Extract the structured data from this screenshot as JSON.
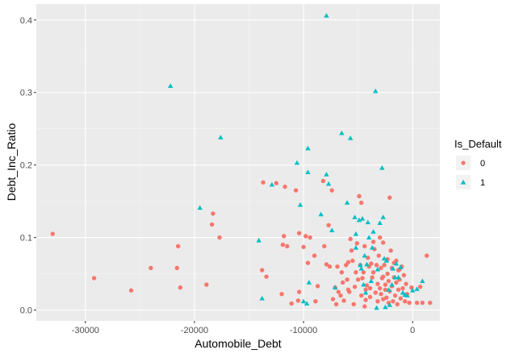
{
  "chart_data": {
    "type": "scatter",
    "xlabel": "Automobile_Debt",
    "ylabel": "Debt_Inc_Ratio",
    "xlim": [
      -34500,
      2500
    ],
    "ylim": [
      -0.015,
      0.422
    ],
    "xticks": [
      -30000,
      -20000,
      -10000,
      0
    ],
    "yticks": [
      0.0,
      0.1,
      0.2,
      0.3,
      0.4
    ],
    "xtick_labels": [
      "-30000",
      "-20000",
      "-10000",
      "0"
    ],
    "ytick_labels": [
      "0.0",
      "0.1",
      "0.2",
      "0.3",
      "0.4"
    ],
    "grid": true,
    "legend": {
      "title": "Is_Default",
      "placement": "right",
      "entries": [
        "0",
        "1"
      ]
    },
    "colors": {
      "0": "#F8766D",
      "1": "#00BFC4",
      "panel": "#EBEBEB",
      "grid_major": "#FFFFFF",
      "grid_minor": "#F5F5F5"
    },
    "series": [
      {
        "name": "0",
        "marker": "circle",
        "points": [
          [
            -33000,
            0.105
          ],
          [
            -29200,
            0.044
          ],
          [
            -25800,
            0.027
          ],
          [
            -24000,
            0.058
          ],
          [
            -21500,
            0.088
          ],
          [
            -21600,
            0.058
          ],
          [
            -21300,
            0.031
          ],
          [
            -18900,
            0.035
          ],
          [
            -18300,
            0.133
          ],
          [
            -18400,
            0.118
          ],
          [
            -17700,
            0.1
          ],
          [
            -13700,
            0.176
          ],
          [
            -13800,
            0.055
          ],
          [
            -13400,
            0.046
          ],
          [
            -12500,
            0.175
          ],
          [
            -12000,
            0.022
          ],
          [
            -11900,
            0.09
          ],
          [
            -11800,
            0.102
          ],
          [
            -11500,
            0.088
          ],
          [
            -11700,
            0.17
          ],
          [
            -11100,
            0.009
          ],
          [
            -10700,
            0.165
          ],
          [
            -10500,
            0.013
          ],
          [
            -10400,
            0.025
          ],
          [
            -10400,
            0.106
          ],
          [
            -10000,
            0.087
          ],
          [
            -9800,
            0.102
          ],
          [
            -9600,
            0.065
          ],
          [
            -9400,
            0.1
          ],
          [
            -9000,
            0.075
          ],
          [
            -8900,
            0.012
          ],
          [
            -8700,
            0.033
          ],
          [
            -8200,
            0.178
          ],
          [
            -8100,
            0.088
          ],
          [
            -7900,
            0.063
          ],
          [
            -7700,
            0.117
          ],
          [
            -7600,
            0.06
          ],
          [
            -7400,
            0.165
          ],
          [
            -7300,
            0.015
          ],
          [
            -7100,
            0.031
          ],
          [
            -7000,
            0.008
          ],
          [
            -6900,
            0.06
          ],
          [
            -6800,
            0.025
          ],
          [
            -6600,
            0.02
          ],
          [
            -6400,
            0.038
          ],
          [
            -6300,
            0.013
          ],
          [
            -6100,
            0.062
          ],
          [
            -6000,
            0.042
          ],
          [
            -5900,
            0.028
          ],
          [
            -5800,
            0.025
          ],
          [
            -5700,
            0.098
          ],
          [
            -5600,
            0.082
          ],
          [
            -5500,
            0.068
          ],
          [
            -5400,
            0.008
          ],
          [
            -5300,
            0.032
          ],
          [
            -5200,
            0.052
          ],
          [
            -5100,
            0.092
          ],
          [
            -5000,
            0.042
          ],
          [
            -4900,
            0.157
          ],
          [
            -4800,
            0.062
          ],
          [
            -4700,
            0.148
          ],
          [
            -4700,
            0.02
          ],
          [
            -4600,
            0.044
          ],
          [
            -4500,
            0.052
          ],
          [
            -4400,
            0.088
          ],
          [
            -4300,
            0.028
          ],
          [
            -4200,
            0.034
          ],
          [
            -4100,
            0.072
          ],
          [
            -4000,
            0.06
          ],
          [
            -3900,
            0.018
          ],
          [
            -3900,
            0.03
          ],
          [
            -3800,
            0.064
          ],
          [
            -3700,
            0.045
          ],
          [
            -3600,
            0.094
          ],
          [
            -3500,
            0.084
          ],
          [
            -3400,
            0.024
          ],
          [
            -3300,
            0.062
          ],
          [
            -3200,
            0.036
          ],
          [
            -3200,
            0.012
          ],
          [
            -3100,
            0.075
          ],
          [
            -3000,
            0.1
          ],
          [
            -2900,
            0.058
          ],
          [
            -2900,
            0.022
          ],
          [
            -2800,
            0.044
          ],
          [
            -2700,
            0.093
          ],
          [
            -2700,
            0.015
          ],
          [
            -2600,
            0.062
          ],
          [
            -2500,
            0.035
          ],
          [
            -2500,
            0.028
          ],
          [
            -2400,
            0.017
          ],
          [
            -2300,
            0.07
          ],
          [
            -2300,
            0.05
          ],
          [
            -2200,
            0.04
          ],
          [
            -2200,
            0.01
          ],
          [
            -2100,
            0.155
          ],
          [
            -2100,
            0.026
          ],
          [
            -2000,
            0.082
          ],
          [
            -1900,
            0.058
          ],
          [
            -1900,
            0.033
          ],
          [
            -1800,
            0.012
          ],
          [
            -1700,
            0.065
          ],
          [
            -1700,
            0.045
          ],
          [
            -1600,
            0.02
          ],
          [
            -1500,
            0.068
          ],
          [
            -1500,
            0.038
          ],
          [
            -1400,
            0.008
          ],
          [
            -1300,
            0.055
          ],
          [
            -1300,
            0.028
          ],
          [
            -1200,
            0.042
          ],
          [
            -1100,
            0.016
          ],
          [
            -1000,
            0.06
          ],
          [
            -900,
            0.03
          ],
          [
            -800,
            0.048
          ],
          [
            -700,
            0.012
          ],
          [
            -600,
            0.036
          ],
          [
            -500,
            0.022
          ],
          [
            -300,
            0.01
          ],
          [
            -100,
            0.031
          ],
          [
            400,
            0.01
          ],
          [
            700,
            0.032
          ],
          [
            900,
            0.01
          ],
          [
            1300,
            0.075
          ],
          [
            1600,
            0.01
          ],
          [
            -6500,
            0.052
          ],
          [
            -5900,
            0.066
          ],
          [
            -3600,
            0.052
          ],
          [
            -2700,
            0.046
          ],
          [
            -4300,
            0.014
          ],
          [
            -4400,
            0.005
          ],
          [
            -3000,
            0.03
          ],
          [
            -1200,
            0.056
          ]
        ]
      },
      {
        "name": "1",
        "marker": "triangle",
        "points": [
          [
            -22200,
            0.309
          ],
          [
            -19500,
            0.141
          ],
          [
            -17600,
            0.238
          ],
          [
            -14100,
            0.096
          ],
          [
            -13800,
            0.016
          ],
          [
            -12900,
            0.173
          ],
          [
            -10600,
            0.203
          ],
          [
            -10300,
            0.145
          ],
          [
            -10000,
            0.012
          ],
          [
            -9700,
            0.009
          ],
          [
            -9600,
            0.223
          ],
          [
            -9600,
            0.19
          ],
          [
            -9500,
            0.038
          ],
          [
            -8400,
            0.132
          ],
          [
            -7900,
            0.406
          ],
          [
            -7900,
            0.187
          ],
          [
            -7700,
            0.174
          ],
          [
            -7400,
            0.11
          ],
          [
            -7100,
            0.031
          ],
          [
            -6500,
            0.244
          ],
          [
            -6000,
            0.148
          ],
          [
            -5700,
            0.237
          ],
          [
            -5300,
            0.128
          ],
          [
            -5200,
            0.105
          ],
          [
            -5200,
            0.086
          ],
          [
            -4900,
            0.124
          ],
          [
            -4800,
            0.062
          ],
          [
            -4700,
            0.057
          ],
          [
            -4600,
            0.126
          ],
          [
            -4500,
            0.035
          ],
          [
            -4400,
            0.075
          ],
          [
            -4300,
            0.024
          ],
          [
            -4200,
            0.063
          ],
          [
            -4100,
            0.121
          ],
          [
            -4000,
            0.1
          ],
          [
            -3800,
            0.04
          ],
          [
            -3700,
            0.086
          ],
          [
            -3600,
            0.108
          ],
          [
            -3400,
            0.302
          ],
          [
            -3300,
            0.003
          ],
          [
            -3200,
            0.056
          ],
          [
            -3000,
            0.12
          ],
          [
            -2800,
            0.196
          ],
          [
            -2700,
            0.128
          ],
          [
            -2600,
            0.071
          ],
          [
            -2500,
            0.004
          ],
          [
            -2400,
            0.068
          ],
          [
            -2200,
            0.028
          ],
          [
            -2100,
            0.007
          ],
          [
            -1900,
            0.035
          ],
          [
            -1800,
            0.057
          ],
          [
            -1600,
            0.045
          ],
          [
            -1500,
            0.064
          ],
          [
            -1300,
            0.045
          ],
          [
            -1100,
            0.059
          ],
          [
            -900,
            0.024
          ],
          [
            -700,
            0.021
          ],
          [
            -500,
            0.02
          ],
          [
            0,
            0.027
          ],
          [
            400,
            0.029
          ],
          [
            900,
            0.04
          ]
        ]
      }
    ]
  }
}
